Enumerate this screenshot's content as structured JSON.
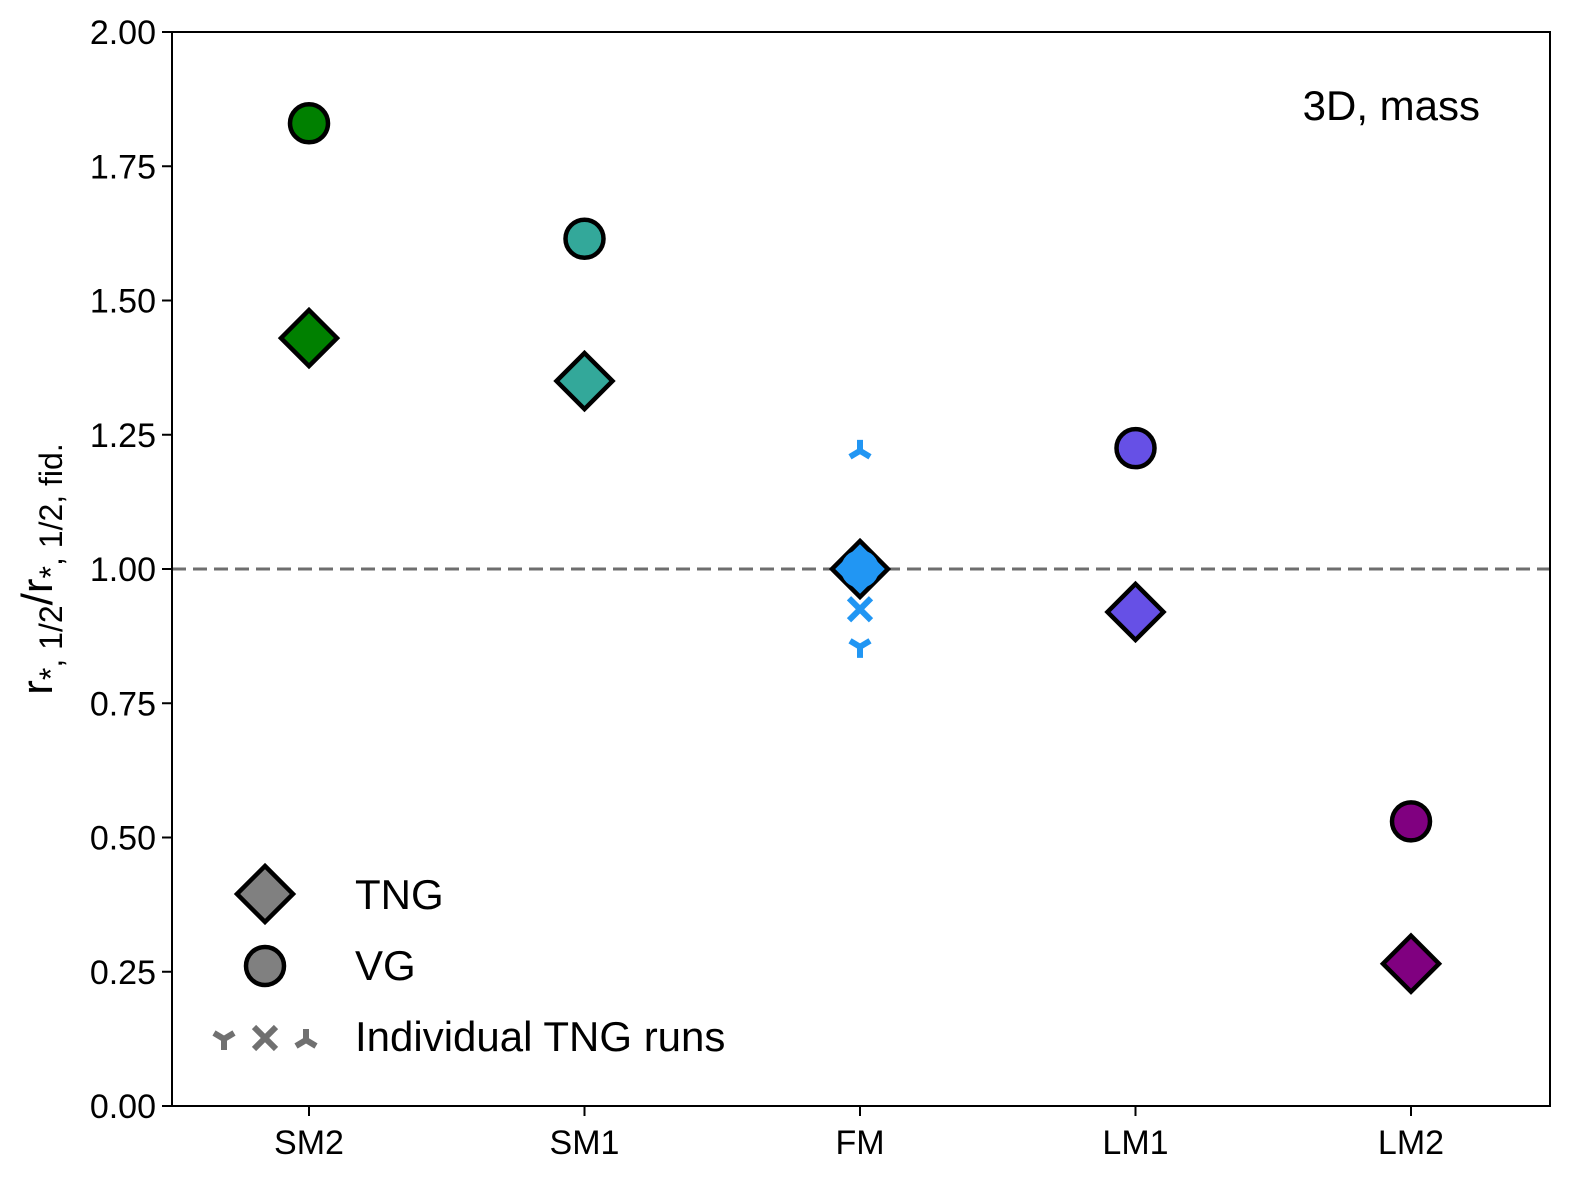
{
  "chart_data": {
    "type": "scatter",
    "categories": [
      "SM2",
      "SM1",
      "FM",
      "LM1",
      "LM2"
    ],
    "ylim": [
      0.0,
      2.0
    ],
    "yticks": [
      "0.00",
      "0.25",
      "0.50",
      "0.75",
      "1.00",
      "1.25",
      "1.50",
      "1.75",
      "2.00"
    ],
    "ylabel": {
      "main": "r",
      "sub1": "*, 1/2",
      "slash": "/r",
      "sub2": "*, 1/2, fid."
    },
    "annotation": "3D, mass",
    "reference_line": 1.0,
    "series": [
      {
        "name": "TNG",
        "marker": "diamond",
        "values": [
          1.43,
          1.35,
          1.0,
          0.92,
          0.265
        ]
      },
      {
        "name": "VG",
        "marker": "circle",
        "values": [
          1.83,
          1.615,
          1.0,
          1.225,
          0.53
        ]
      },
      {
        "name": "Individual TNG runs",
        "category": "FM",
        "points": [
          {
            "marker": "tri_up",
            "value": 1.22
          },
          {
            "marker": "x",
            "value": 0.925
          },
          {
            "marker": "tri_down",
            "value": 0.855
          }
        ]
      }
    ],
    "colors": {
      "SM2": "#008000",
      "SM1": "#33a89a",
      "FM": "#2196f3",
      "LM1": "#6650e6",
      "LM2": "#800080",
      "legend": "#808080",
      "reference": "#6e6e6e"
    },
    "legend": {
      "position": "lower-left",
      "entries": [
        "TNG",
        "VG",
        "Individual TNG runs"
      ]
    }
  }
}
